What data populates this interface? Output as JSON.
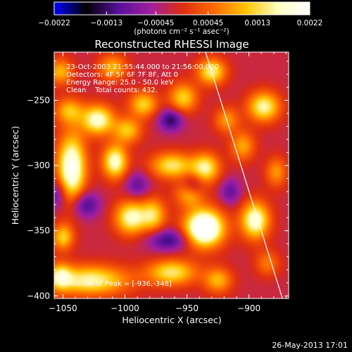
{
  "chart_data": {
    "type": "heatmap",
    "title": "Reconstructed RHESSI Image",
    "xlabel": "Heliocentric X (arcsec)",
    "ylabel": "Heliocentric Y (arcsec)",
    "xlim": [
      -1057,
      -868
    ],
    "ylim": [
      -402,
      -213
    ],
    "xticks": [
      {
        "value": -1050,
        "label": "−1050"
      },
      {
        "value": -1000,
        "label": "−1000"
      },
      {
        "value": -950,
        "label": "−950"
      },
      {
        "value": -900,
        "label": "−900"
      }
    ],
    "yticks": [
      {
        "value": -250,
        "label": "−250"
      },
      {
        "value": -300,
        "label": "−300"
      },
      {
        "value": -350,
        "label": "−350"
      },
      {
        "value": -400,
        "label": "−400"
      }
    ],
    "colorbar": {
      "min": -0.0022,
      "max": 0.0022,
      "ticks": [
        {
          "value": -0.0022,
          "label": "−0.0022"
        },
        {
          "value": -0.0013,
          "label": "−0.0013"
        },
        {
          "value": -0.00045,
          "label": "−0.00045"
        },
        {
          "value": 0.00045,
          "label": "0.00045"
        },
        {
          "value": 0.0013,
          "label": "0.0013"
        },
        {
          "value": 0.0022,
          "label": "0.0022"
        }
      ],
      "units": "(photons cm⁻² s⁻¹ asec⁻²)",
      "colormap": [
        "#0000ff",
        "#000000",
        "#55109a",
        "#9f1fa0",
        "#dd2d12",
        "#ff6a00",
        "#ffc400",
        "#ffffc0",
        "#ffffff"
      ]
    },
    "annotations": [
      "23-Oct-2003 21:55:44.000 to 21:56:00.000",
      "Detectors: 4F 5F 6F 7F 8F, Att 0",
      "Energy Range: 25.0 - 50.0 keV",
      "Clean    Total counts: 432."
    ],
    "peak_label": "Position of Peak = [-936,-348]",
    "peak_position": [
      -936,
      -348
    ],
    "limb_line": [
      [
        -935,
        -213
      ],
      [
        -873,
        -402
      ]
    ],
    "sources": [
      {
        "x": -936,
        "y": -348,
        "amp": 0.003,
        "sx": 11,
        "sy": 10
      },
      {
        "x": -1043,
        "y": -302,
        "amp": 0.0024,
        "sx": 8,
        "sy": 18
      },
      {
        "x": -1022,
        "y": -265,
        "amp": 0.002,
        "sx": 9,
        "sy": 8
      },
      {
        "x": -1008,
        "y": -297,
        "amp": 0.002,
        "sx": 7,
        "sy": 9
      },
      {
        "x": -995,
        "y": -340,
        "amp": 0.0019,
        "sx": 9,
        "sy": 9
      },
      {
        "x": -998,
        "y": -273,
        "amp": 0.0013,
        "sx": 8,
        "sy": 7
      },
      {
        "x": -985,
        "y": -253,
        "amp": 0.0014,
        "sx": 8,
        "sy": 7
      },
      {
        "x": -953,
        "y": -248,
        "amp": 0.0014,
        "sx": 8,
        "sy": 8
      },
      {
        "x": -930,
        "y": -228,
        "amp": 0.0017,
        "sx": 8,
        "sy": 7
      },
      {
        "x": -888,
        "y": -255,
        "amp": 0.0018,
        "sx": 9,
        "sy": 8
      },
      {
        "x": -918,
        "y": -265,
        "amp": 0.001,
        "sx": 7,
        "sy": 7
      },
      {
        "x": -905,
        "y": -285,
        "amp": 0.0011,
        "sx": 7,
        "sy": 8
      },
      {
        "x": -962,
        "y": -300,
        "amp": 0.0016,
        "sx": 12,
        "sy": 7
      },
      {
        "x": -935,
        "y": -302,
        "amp": 0.0017,
        "sx": 8,
        "sy": 8
      },
      {
        "x": -948,
        "y": -322,
        "amp": 0.0012,
        "sx": 8,
        "sy": 7
      },
      {
        "x": -895,
        "y": -342,
        "amp": 0.0021,
        "sx": 8,
        "sy": 10
      },
      {
        "x": -977,
        "y": -338,
        "amp": 0.0014,
        "sx": 7,
        "sy": 9
      },
      {
        "x": -962,
        "y": -382,
        "amp": 0.0016,
        "sx": 14,
        "sy": 7
      },
      {
        "x": -925,
        "y": -388,
        "amp": 0.0012,
        "sx": 8,
        "sy": 7
      },
      {
        "x": -1028,
        "y": -388,
        "amp": 0.0018,
        "sx": 22,
        "sy": 8
      },
      {
        "x": -1052,
        "y": -385,
        "amp": 0.0013,
        "sx": 6,
        "sy": 7
      },
      {
        "x": -1050,
        "y": -355,
        "amp": 0.0014,
        "sx": 6,
        "sy": 7
      },
      {
        "x": -1045,
        "y": -258,
        "amp": 0.0012,
        "sx": 8,
        "sy": 7
      },
      {
        "x": -1052,
        "y": -228,
        "amp": 0.0012,
        "sx": 7,
        "sy": 7
      },
      {
        "x": -1010,
        "y": -225,
        "amp": 0.0012,
        "sx": 8,
        "sy": 7
      },
      {
        "x": -885,
        "y": -375,
        "amp": 0.0008,
        "sx": 7,
        "sy": 7
      },
      {
        "x": -878,
        "y": -305,
        "amp": 0.001,
        "sx": 6,
        "sy": 8
      },
      {
        "x": -963,
        "y": -265,
        "amp": -0.0012,
        "sx": 7,
        "sy": 6
      },
      {
        "x": -1032,
        "y": -330,
        "amp": -0.0011,
        "sx": 8,
        "sy": 7
      },
      {
        "x": -965,
        "y": -357,
        "amp": -0.0011,
        "sx": 12,
        "sy": 6
      },
      {
        "x": -945,
        "y": -315,
        "amp": -0.0008,
        "sx": 6,
        "sy": 6
      },
      {
        "x": -990,
        "y": -315,
        "amp": -0.0008,
        "sx": 7,
        "sy": 7
      },
      {
        "x": -915,
        "y": -320,
        "amp": -0.0008,
        "sx": 6,
        "sy": 7
      },
      {
        "x": -1055,
        "y": -322,
        "amp": -0.0009,
        "sx": 6,
        "sy": 8
      }
    ]
  },
  "timestamp": "26-May-2013 17:01"
}
